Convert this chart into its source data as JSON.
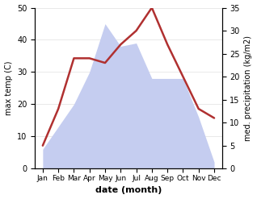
{
  "months": [
    "Jan",
    "Feb",
    "Mar",
    "Apr",
    "May",
    "Jun",
    "Jul",
    "Aug",
    "Sep",
    "Oct",
    "Nov",
    "Dec"
  ],
  "temperature": [
    5,
    13,
    24,
    24,
    23,
    27,
    30,
    35,
    27,
    20,
    13,
    11
  ],
  "precipitation": [
    6,
    13,
    20,
    30,
    45,
    38,
    39,
    28,
    28,
    28,
    16,
    2
  ],
  "temp_color": "#b03030",
  "precip_color": "#c5cdf0",
  "left_ylim": [
    0,
    50
  ],
  "right_ylim": [
    0,
    35
  ],
  "left_yticks": [
    0,
    10,
    20,
    30,
    40,
    50
  ],
  "right_yticks": [
    0,
    5,
    10,
    15,
    20,
    25,
    30,
    35
  ],
  "ylabel_left": "max temp (C)",
  "ylabel_right": "med. precipitation (kg/m2)",
  "xlabel": "date (month)",
  "figsize": [
    3.18,
    2.47
  ],
  "dpi": 100
}
